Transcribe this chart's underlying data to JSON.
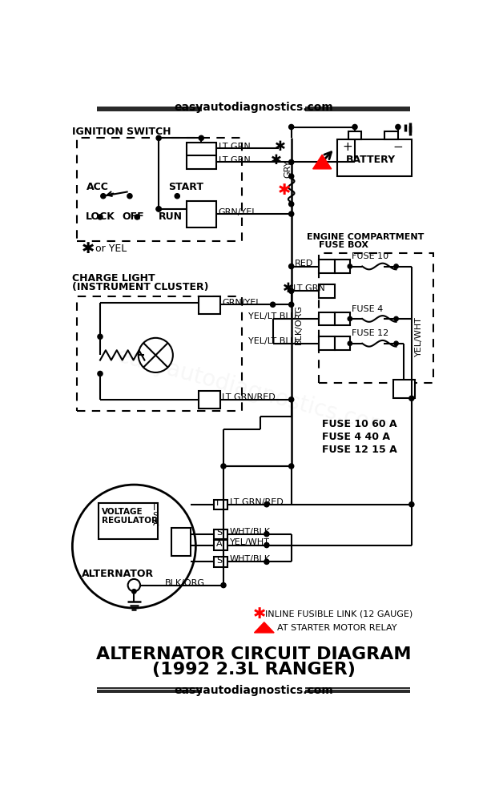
{
  "bg_color": "#ffffff",
  "title_line1": "ALTERNATOR CIRCUIT DIAGRAM",
  "title_line2": "(1992 2.3L RANGER)",
  "website": "easyautodiagnostics.com",
  "figsize": [
    6.18,
    10.0
  ],
  "dpi": 100
}
